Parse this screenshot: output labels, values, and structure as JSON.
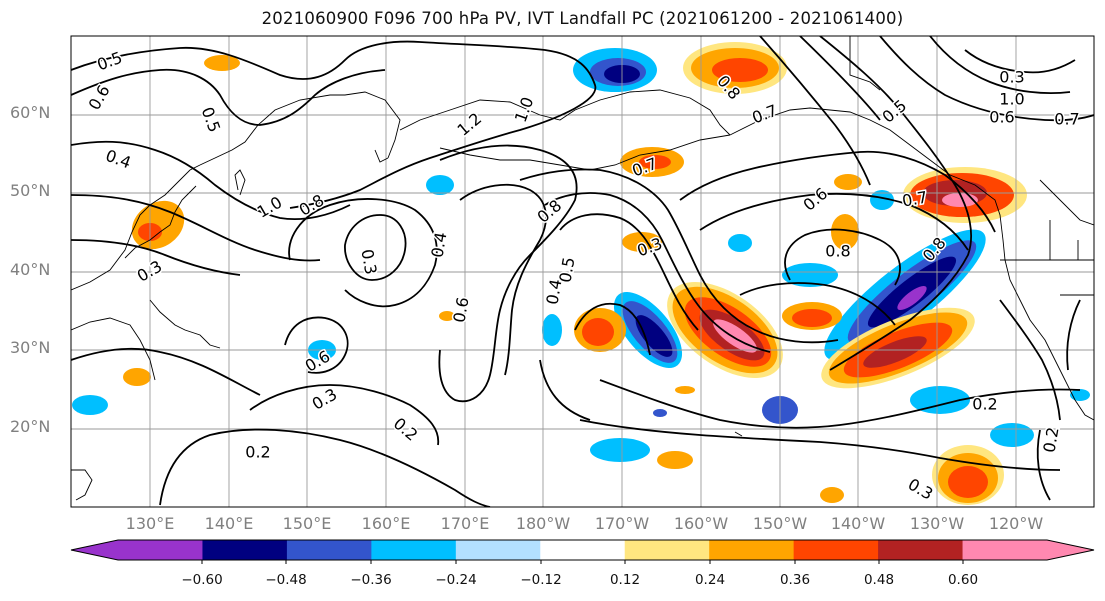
{
  "title": "2021060900 F096 700 hPa PV, IVT Landfall PC (2021061200 - 2021061400)",
  "lat_labels": [
    "60°N",
    "50°N",
    "40°N",
    "30°N",
    "20°N"
  ],
  "lon_labels": [
    "130°E",
    "140°E",
    "150°E",
    "160°E",
    "170°E",
    "180°W",
    "170°W",
    "160°W",
    "150°W",
    "140°W",
    "130°W",
    "120°W"
  ],
  "contour_labels": [
    "0.5",
    "0.6",
    "0.5",
    "0.4",
    "0.3",
    "1.0",
    "0.8",
    "1.2",
    "1.0",
    "0.3",
    "0.4",
    "0.6",
    "0.8",
    "0.5",
    "0.4",
    "0.3",
    "0.6",
    "0.3",
    "0.2",
    "0.2",
    "0.8",
    "0.7",
    "0.6",
    "0.8",
    "0.8",
    "0.7",
    "0.2",
    "0.2",
    "0.3",
    "0.5",
    "0.7",
    "0.7",
    "1.0",
    "0.6",
    "0.3"
  ],
  "colorbar": {
    "ticks": [
      "−0.60",
      "−0.48",
      "−0.36",
      "−0.24",
      "−0.12",
      "0.12",
      "0.24",
      "0.36",
      "0.48",
      "0.60"
    ],
    "colors": [
      "#9933cc",
      "#000080",
      "#3355cc",
      "#00bfff",
      "#b3e0ff",
      "#ffffff",
      "#ffe680",
      "#ffa500",
      "#ff4500",
      "#b22222",
      "#ff88b0"
    ]
  },
  "colors": {
    "positive_fill": [
      "#ffe680",
      "#ffa500",
      "#ff4500",
      "#b22222",
      "#ff88b0"
    ],
    "negative_fill": [
      "#b3e0ff",
      "#00bfff",
      "#3355cc",
      "#000080",
      "#9933cc"
    ],
    "gridline": "#9a9a9a",
    "coastline": "#000000",
    "axis_label": "#808080"
  }
}
